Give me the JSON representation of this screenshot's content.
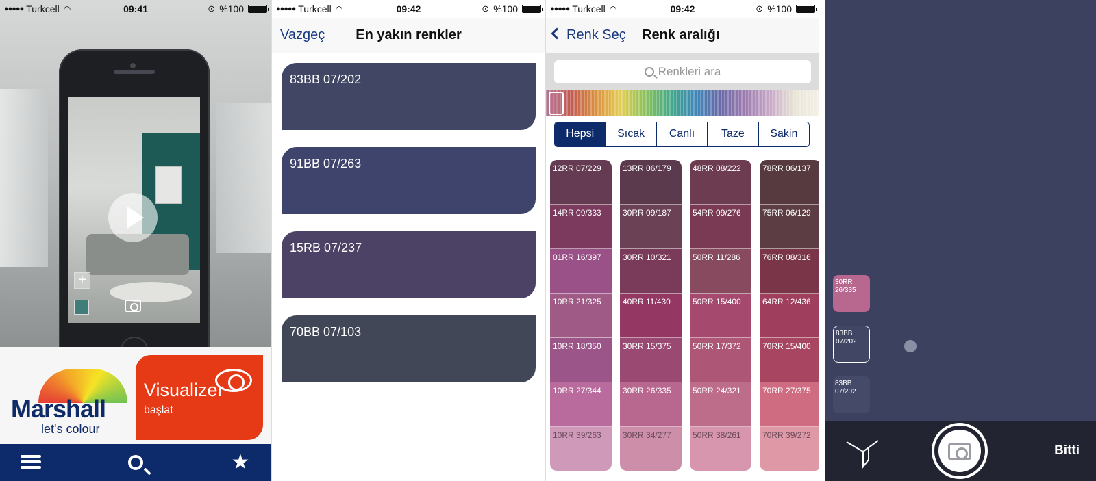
{
  "status": [
    {
      "carrier": "Turkcell",
      "time": "09:41",
      "battery": "%100"
    },
    {
      "carrier": "Turkcell",
      "time": "09:42",
      "battery": "%100"
    },
    {
      "carrier": "Turkcell",
      "time": "09:42",
      "battery": "%100"
    }
  ],
  "screen1": {
    "brand_name": "Marshall",
    "brand_tagline": "let's colour",
    "visualizer_title": "Visualizer",
    "visualizer_sub": "başlat",
    "tabbar_icons": [
      "menu-icon",
      "search-icon",
      "star-icon"
    ]
  },
  "screen2": {
    "cancel": "Vazgeç",
    "title": "En yakın renkler",
    "colors": [
      {
        "code": "83BB 07/202",
        "hex": "#404663"
      },
      {
        "code": "91BB 07/263",
        "hex": "#3f446d"
      },
      {
        "code": "15RB 07/237",
        "hex": "#4b4266"
      },
      {
        "code": "70BB 07/103",
        "hex": "#424757"
      }
    ]
  },
  "screen3": {
    "back": "Renk Seç",
    "title": "Renk aralığı",
    "search_placeholder": "Renkleri ara",
    "filters": [
      "Hepsi",
      "Sıcak",
      "Canlı",
      "Taze",
      "Sakin"
    ],
    "active_filter": "Hepsi",
    "columns": [
      [
        {
          "code": "12RR 07/229",
          "hex": "#643b52"
        },
        {
          "code": "14RR 09/333",
          "hex": "#7b3a5e"
        },
        {
          "code": "01RR 16/397",
          "hex": "#9a5188"
        },
        {
          "code": "10RR 21/325",
          "hex": "#9f5b86"
        },
        {
          "code": "10RR 18/350",
          "hex": "#9c5588"
        },
        {
          "code": "10RR 27/344",
          "hex": "#b86b9c"
        },
        {
          "code": "10RR 39/263",
          "hex": "#cf99ba"
        }
      ],
      [
        {
          "code": "13RR 06/179",
          "hex": "#5c3a4e"
        },
        {
          "code": "30RR 09/187",
          "hex": "#6b4156"
        },
        {
          "code": "30RR 10/321",
          "hex": "#7a3a5a"
        },
        {
          "code": "40RR 11/430",
          "hex": "#943863"
        },
        {
          "code": "30RR 15/375",
          "hex": "#9a4a72"
        },
        {
          "code": "30RR 26/335",
          "hex": "#b8678e"
        },
        {
          "code": "30RR 34/277",
          "hex": "#cd8eaa"
        }
      ],
      [
        {
          "code": "48RR 08/222",
          "hex": "#6d3c50"
        },
        {
          "code": "54RR 09/276",
          "hex": "#7b3a54"
        },
        {
          "code": "50RR 11/286",
          "hex": "#874a5e"
        },
        {
          "code": "50RR 15/400",
          "hex": "#a6496e"
        },
        {
          "code": "50RR 17/372",
          "hex": "#ad5676"
        },
        {
          "code": "50RR 24/321",
          "hex": "#bd6c89"
        },
        {
          "code": "50RR 38/261",
          "hex": "#d796ad"
        }
      ],
      [
        {
          "code": "78RR 06/137",
          "hex": "#573a40"
        },
        {
          "code": "75RR 06/129",
          "hex": "#5c3d43"
        },
        {
          "code": "76RR 08/316",
          "hex": "#7a3548"
        },
        {
          "code": "64RR 12/436",
          "hex": "#a03e5d"
        },
        {
          "code": "70RR 15/400",
          "hex": "#a84662"
        },
        {
          "code": "70RR 27/375",
          "hex": "#cf6c81"
        },
        {
          "code": "70RR 39/272",
          "hex": "#de98a6"
        }
      ]
    ]
  },
  "screen4": {
    "stack": [
      {
        "code": "30RR 26/335",
        "hex": "#b8678e"
      },
      {
        "code": "83BB 07/202",
        "hex": "#404663"
      },
      {
        "code": "83BB 07/202",
        "hex": "#454a68"
      }
    ],
    "done": "Bitti"
  }
}
